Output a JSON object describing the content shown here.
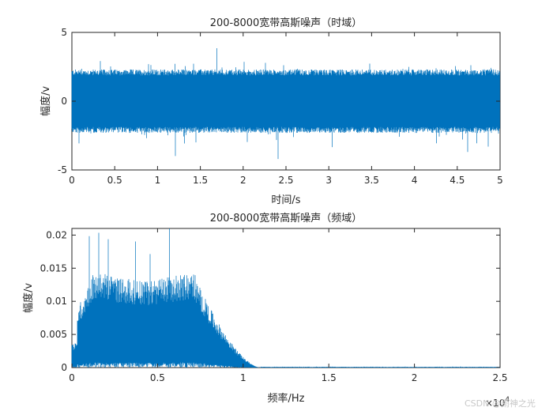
{
  "chart_data": [
    {
      "type": "line",
      "title": "200-8000宽带高斯噪声（时域）",
      "xlabel": "时间/s",
      "ylabel": "幅度/v",
      "xlim": [
        0,
        5
      ],
      "ylim": [
        -5,
        5
      ],
      "xticks": [
        "0",
        "0.5",
        "1",
        "1.5",
        "2",
        "2.5",
        "3",
        "3.5",
        "4",
        "4.5",
        "5"
      ],
      "yticks": [
        "5",
        "0",
        "-5"
      ],
      "series": [
        {
          "color": "#0072BD",
          "description": "dense noise signal",
          "x_range": [
            0,
            5
          ],
          "typical_amplitude": 2.2,
          "peak_amplitude": 4.2
        }
      ]
    },
    {
      "type": "line",
      "title": "200-8000宽带高斯噪声（频域）",
      "xlabel": "频率/Hz",
      "ylabel": "幅度/v",
      "xlim": [
        0,
        25000
      ],
      "ylim": [
        0,
        0.021
      ],
      "x_exponent": "× 10^4",
      "x_exponent_base": "×10",
      "x_exponent_power": "4",
      "xticks": [
        "0",
        "0.5",
        "1",
        "1.5",
        "2",
        "2.5"
      ],
      "yticks": [
        "0.02",
        "0.015",
        "0.01",
        "0.005",
        "0"
      ],
      "series": [
        {
          "color": "#0072BD",
          "description": "band-limited spectrum",
          "passband_hz": [
            200,
            8000
          ],
          "typical_level": 0.013,
          "peak_level": 0.021,
          "rolloff_end_hz": 11000
        }
      ]
    }
  ],
  "watermark": "CSDN @雨神之光",
  "colors": {
    "line": "#0072BD",
    "axes": "#262626"
  }
}
